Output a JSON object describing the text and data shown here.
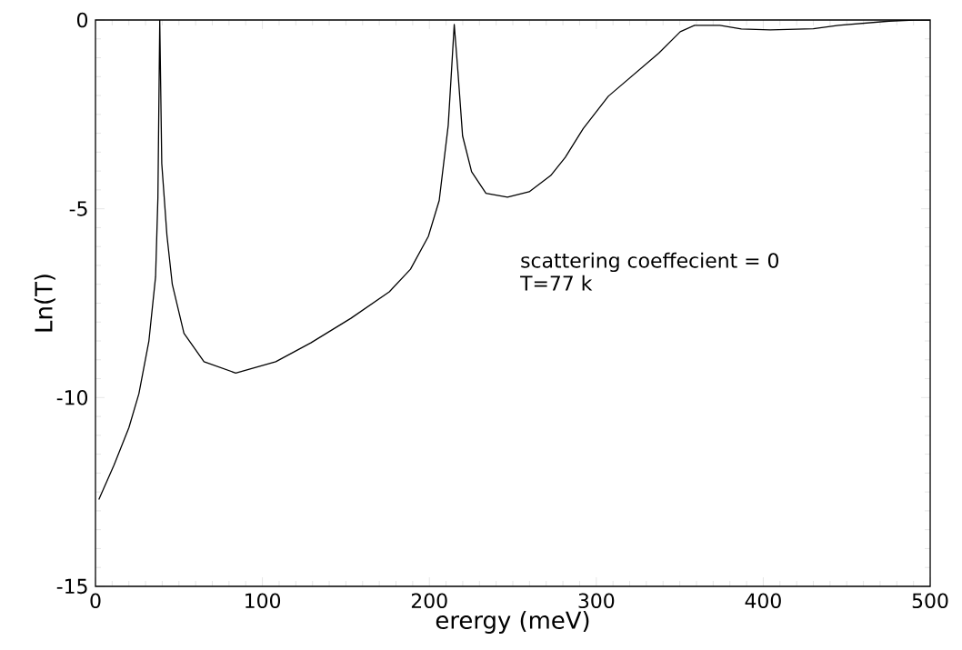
{
  "chart_data": {
    "type": "line",
    "xlabel": "erergy (meV)",
    "ylabel": "Ln(T)",
    "annotations": [
      "scattering coeffecient = 0",
      "T=77 k"
    ],
    "series": [
      {
        "color": "#000000",
        "x": [
          2,
          11,
          20,
          26,
          32,
          36,
          37.4,
          38.5,
          39.7,
          42.8,
          46,
          53,
          65,
          84,
          108,
          129,
          153,
          176,
          188.7,
          199.4,
          205.9,
          211.3,
          213.5,
          214.9,
          217.1,
          219.9,
          225.3,
          233.9,
          246.8,
          259.8,
          272.7,
          281.4,
          292.1,
          307.2,
          322.3,
          337.4,
          350.3,
          358.9,
          374,
          386.9,
          404.2,
          430,
          445,
          475.4,
          490.4,
          500
        ],
        "values": [
          -12.7,
          -11.8,
          -10.8,
          -9.9,
          -8.5,
          -6.8,
          -4.7,
          0,
          -3.8,
          -5.7,
          -7.0,
          -8.3,
          -9.05,
          -9.35,
          -9.05,
          -8.55,
          -7.9,
          -7.2,
          -6.6,
          -5.73,
          -4.78,
          -2.79,
          -1.17,
          -0.12,
          -1.36,
          -3.07,
          -4.02,
          -4.59,
          -4.69,
          -4.55,
          -4.12,
          -3.64,
          -2.88,
          -2.02,
          -1.45,
          -0.88,
          -0.31,
          -0.14,
          -0.14,
          -0.24,
          -0.26,
          -0.23,
          -0.14,
          -0.03,
          0,
          0
        ]
      }
    ],
    "xlim": [
      0,
      500
    ],
    "ylim": [
      -15,
      0
    ],
    "xticks": [
      0,
      100,
      200,
      300,
      400,
      500
    ],
    "yticks": [
      -15,
      -10,
      -5,
      0
    ]
  }
}
